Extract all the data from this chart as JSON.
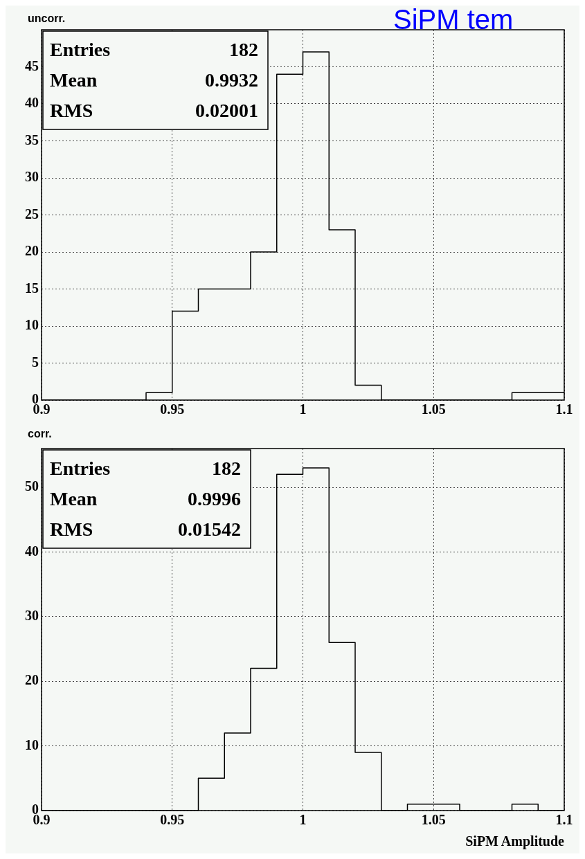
{
  "chart_data": [
    {
      "type": "histogram",
      "title": "SiPM tem",
      "annotations": [
        "uncorr.",
        "Entries",
        "182",
        "Mean",
        "0.9932",
        "RMS",
        "0.02001"
      ],
      "bins": [
        0.9,
        0.91,
        0.92,
        0.93,
        0.94,
        0.95,
        0.96,
        0.97,
        0.98,
        0.99,
        1.0,
        1.01,
        1.02,
        1.03,
        1.04,
        1.05,
        1.06,
        1.07,
        1.08,
        1.09,
        1.1
      ],
      "values": [
        0,
        0,
        0,
        0,
        1,
        12,
        15,
        15,
        20,
        44,
        47,
        23,
        2,
        0,
        0,
        0,
        0,
        0,
        1,
        1
      ],
      "color": "#000000",
      "xlim": [
        0.9,
        1.1
      ],
      "xticks": [
        0.9,
        0.95,
        1,
        1.05,
        1.1
      ],
      "ylim": [
        0,
        50
      ],
      "yticks": [
        0,
        5,
        10,
        15,
        20,
        25,
        30,
        35,
        40,
        45
      ],
      "grid": true
    },
    {
      "type": "histogram",
      "xlabel": "SiPM Amplitude",
      "annotations": [
        "corr.",
        "Entries",
        "182",
        "Mean",
        "0.9996",
        "RMS",
        "0.01542"
      ],
      "bins": [
        0.9,
        0.91,
        0.92,
        0.93,
        0.94,
        0.95,
        0.96,
        0.97,
        0.98,
        0.99,
        1.0,
        1.01,
        1.02,
        1.03,
        1.04,
        1.05,
        1.06,
        1.07,
        1.08,
        1.09,
        1.1
      ],
      "values": [
        0,
        0,
        0,
        0,
        0,
        0,
        5,
        12,
        22,
        52,
        53,
        26,
        9,
        0,
        1,
        1,
        0,
        0,
        1,
        0
      ],
      "color": "#000000",
      "xlim": [
        0.9,
        1.1
      ],
      "xticks": [
        0.9,
        0.95,
        1,
        1.05,
        1.1
      ],
      "ylim": [
        0,
        56
      ],
      "yticks": [
        0,
        10,
        20,
        30,
        40,
        50
      ],
      "grid": true
    }
  ]
}
